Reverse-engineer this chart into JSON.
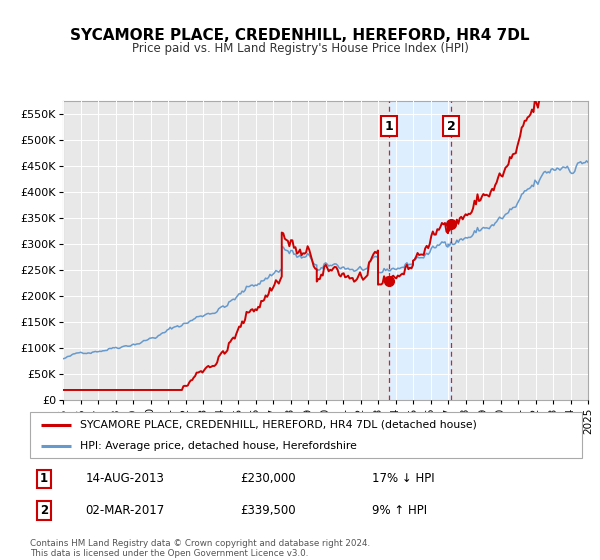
{
  "title": "SYCAMORE PLACE, CREDENHILL, HEREFORD, HR4 7DL",
  "subtitle": "Price paid vs. HM Land Registry's House Price Index (HPI)",
  "legend_line1": "SYCAMORE PLACE, CREDENHILL, HEREFORD, HR4 7DL (detached house)",
  "legend_line2": "HPI: Average price, detached house, Herefordshire",
  "annotation1_label": "1",
  "annotation1_date": "14-AUG-2013",
  "annotation1_price": "£230,000",
  "annotation1_hpi": "17% ↓ HPI",
  "annotation1_year": 2013.62,
  "annotation1_value": 230000,
  "annotation2_label": "2",
  "annotation2_date": "02-MAR-2017",
  "annotation2_price": "£339,500",
  "annotation2_hpi": "9% ↑ HPI",
  "annotation2_year": 2017.17,
  "annotation2_value": 339500,
  "shaded_start": 2013.62,
  "shaded_end": 2017.17,
  "red_line_color": "#cc0000",
  "blue_line_color": "#6699cc",
  "shaded_color": "#ddeeff",
  "dot_color": "#cc0000",
  "footer_text": "Contains HM Land Registry data © Crown copyright and database right 2024.\nThis data is licensed under the Open Government Licence v3.0.",
  "ylim": [
    0,
    575000
  ],
  "xlim_start": 1995,
  "xlim_end": 2025,
  "yticks": [
    0,
    50000,
    100000,
    150000,
    200000,
    250000,
    300000,
    350000,
    400000,
    450000,
    500000,
    550000
  ],
  "ytick_labels": [
    "£0",
    "£50K",
    "£100K",
    "£150K",
    "£200K",
    "£250K",
    "£300K",
    "£350K",
    "£400K",
    "£450K",
    "£500K",
    "£550K"
  ]
}
